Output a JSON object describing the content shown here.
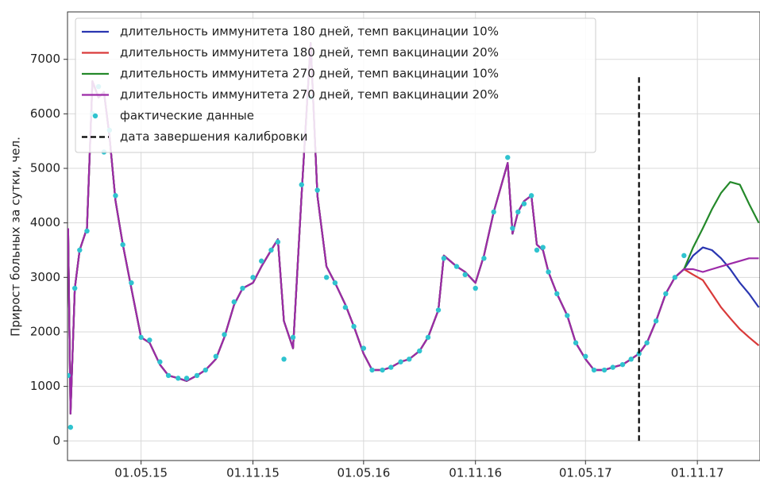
{
  "chart_data": {
    "type": "line",
    "ylabel": "Прирост больных за сутки, чел.",
    "x": [
      "01.01.15",
      "05.01.15",
      "12.01.15",
      "20.01.15",
      "01.02.15",
      "10.02.15",
      "20.02.15",
      "01.03.15",
      "10.03.15",
      "20.03.15",
      "01.04.15",
      "15.04.15",
      "01.05.15",
      "15.05.15",
      "01.06.15",
      "15.06.15",
      "01.07.15",
      "15.07.15",
      "01.08.15",
      "15.08.15",
      "01.09.15",
      "15.09.15",
      "01.10.15",
      "15.10.15",
      "01.11.15",
      "15.11.15",
      "01.12.15",
      "12.12.15",
      "22.12.15",
      "06.01.16",
      "20.01.16",
      "04.02.16",
      "15.02.16",
      "01.03.16",
      "15.03.16",
      "01.04.16",
      "15.04.16",
      "01.05.16",
      "15.05.16",
      "01.06.16",
      "15.06.16",
      "01.07.16",
      "15.07.16",
      "01.08.16",
      "15.08.16",
      "01.09.16",
      "10.09.16",
      "01.10.16",
      "15.10.16",
      "01.11.16",
      "15.11.16",
      "01.12.16",
      "24.12.16",
      "01.01.17",
      "10.01.17",
      "20.01.17",
      "01.02.17",
      "10.02.17",
      "20.02.17",
      "01.03.17",
      "15.03.17",
      "01.04.17",
      "15.04.17",
      "01.05.17",
      "15.05.17",
      "01.06.17",
      "15.06.17",
      "01.07.17",
      "15.07.17",
      "28.07.17",
      "10.08.17",
      "25.08.17",
      "10.09.17",
      "25.09.17",
      "10.10.17",
      "25.10.17",
      "10.11.17",
      "25.11.17",
      "10.12.17",
      "25.12.17",
      "10.01.18",
      "25.01.18",
      "10.02.18"
    ],
    "series": [
      {
        "name": "длительность иммунитета 180 дней, темп вакцинации 10%",
        "color": "#2a36b1",
        "values": [
          3900,
          500,
          2800,
          3500,
          3900,
          6600,
          6300,
          6400,
          5600,
          4400,
          3600,
          2800,
          1900,
          1800,
          1400,
          1200,
          1150,
          1100,
          1200,
          1300,
          1500,
          1900,
          2500,
          2800,
          2900,
          3200,
          3500,
          3700,
          2200,
          1700,
          4500,
          7300,
          4500,
          3200,
          2900,
          2500,
          2100,
          1600,
          1300,
          1300,
          1350,
          1450,
          1500,
          1650,
          1900,
          2400,
          3400,
          3200,
          3100,
          2900,
          3400,
          4200,
          5100,
          3800,
          4200,
          4400,
          4500,
          3600,
          3500,
          3100,
          2700,
          2300,
          1800,
          1500,
          1300,
          1300,
          1350,
          1400,
          1500,
          1600,
          1800,
          2200,
          2700,
          3000,
          3150,
          3400,
          3550,
          3500,
          3350,
          3150,
          2900,
          2700,
          2450
        ]
      },
      {
        "name": "длительность иммунитета 180 дней, темп вакцинации 20%",
        "color": "#d93a3a",
        "values": [
          3900,
          500,
          2800,
          3500,
          3900,
          6600,
          6300,
          6400,
          5600,
          4400,
          3600,
          2800,
          1900,
          1800,
          1400,
          1200,
          1150,
          1100,
          1200,
          1300,
          1500,
          1900,
          2500,
          2800,
          2900,
          3200,
          3500,
          3700,
          2200,
          1700,
          4500,
          7300,
          4500,
          3200,
          2900,
          2500,
          2100,
          1600,
          1300,
          1300,
          1350,
          1450,
          1500,
          1650,
          1900,
          2400,
          3400,
          3200,
          3100,
          2900,
          3400,
          4200,
          5100,
          3800,
          4200,
          4400,
          4500,
          3600,
          3500,
          3100,
          2700,
          2300,
          1800,
          1500,
          1300,
          1300,
          1350,
          1400,
          1500,
          1600,
          1800,
          2200,
          2700,
          3000,
          3150,
          3050,
          2950,
          2700,
          2450,
          2250,
          2050,
          1900,
          1750
        ]
      },
      {
        "name": "длительность иммунитета 270 дней, темп вакцинации 10%",
        "color": "#24892a",
        "values": [
          3900,
          500,
          2800,
          3500,
          3900,
          6600,
          6300,
          6400,
          5600,
          4400,
          3600,
          2800,
          1900,
          1800,
          1400,
          1200,
          1150,
          1100,
          1200,
          1300,
          1500,
          1900,
          2500,
          2800,
          2900,
          3200,
          3500,
          3700,
          2200,
          1700,
          4500,
          7300,
          4500,
          3200,
          2900,
          2500,
          2100,
          1600,
          1300,
          1300,
          1350,
          1450,
          1500,
          1650,
          1900,
          2400,
          3400,
          3200,
          3100,
          2900,
          3400,
          4200,
          5100,
          3800,
          4200,
          4400,
          4500,
          3600,
          3500,
          3100,
          2700,
          2300,
          1800,
          1500,
          1300,
          1300,
          1350,
          1400,
          1500,
          1600,
          1800,
          2200,
          2700,
          3000,
          3150,
          3550,
          3900,
          4250,
          4550,
          4750,
          4700,
          4350,
          4000
        ]
      },
      {
        "name": "длительность иммунитета 270 дней, темп вакцинации 20%",
        "color": "#9c2aa8",
        "values": [
          3900,
          500,
          2800,
          3500,
          3900,
          6600,
          6300,
          6400,
          5600,
          4400,
          3600,
          2800,
          1900,
          1800,
          1400,
          1200,
          1150,
          1100,
          1200,
          1300,
          1500,
          1900,
          2500,
          2800,
          2900,
          3200,
          3500,
          3700,
          2200,
          1700,
          4500,
          7300,
          4500,
          3200,
          2900,
          2500,
          2100,
          1600,
          1300,
          1300,
          1350,
          1450,
          1500,
          1650,
          1900,
          2400,
          3400,
          3200,
          3100,
          2900,
          3400,
          4200,
          5100,
          3800,
          4200,
          4400,
          4500,
          3600,
          3500,
          3100,
          2700,
          2300,
          1800,
          1500,
          1300,
          1300,
          1350,
          1400,
          1500,
          1600,
          1800,
          2200,
          2700,
          3000,
          3150,
          3150,
          3100,
          3150,
          3200,
          3250,
          3300,
          3350,
          3350
        ]
      },
      {
        "name": "фактические данные",
        "color": "#2fc3cf",
        "marker": "circle",
        "values": [
          1200,
          250,
          2800,
          3500,
          3850,
          6000,
          6500,
          5300,
          5700,
          4500,
          3600,
          2900,
          1900,
          1850,
          1450,
          1200,
          1150,
          1150,
          1200,
          1300,
          1550,
          1950,
          2550,
          2800,
          3000,
          3300,
          3500,
          3650,
          1500,
          1900,
          4700,
          6300,
          4600,
          3000,
          2900,
          2450,
          2100,
          1700,
          1300,
          1300,
          1350,
          1450,
          1500,
          1650,
          1900,
          2400,
          3350,
          3200,
          3050,
          2800,
          3350,
          4200,
          5200,
          3900,
          4200,
          4350,
          4500,
          3500,
          3550,
          3100,
          2700,
          2300,
          1800,
          1550,
          1300,
          1300,
          1350,
          1400,
          1500,
          1600,
          1800,
          2200,
          2700,
          3000,
          3400,
          null,
          null,
          null,
          null,
          null,
          null,
          null,
          null
        ]
      }
    ],
    "vline": {
      "name": "дата завершения калибровки",
      "x": "28.07.17",
      "y": [
        0,
        6700
      ],
      "color": "#000000",
      "dash": true
    },
    "xlim": [
      "31.12.14",
      "12.02.18"
    ],
    "xticks": [
      "01.05.15",
      "01.11.15",
      "01.05.16",
      "01.11.16",
      "01.05.17",
      "01.11.17"
    ],
    "ylim": [
      -360,
      7870
    ],
    "yticks": [
      0,
      1000,
      2000,
      3000,
      4000,
      5000,
      6000,
      7000
    ],
    "grid": true,
    "legend": "upper left"
  }
}
